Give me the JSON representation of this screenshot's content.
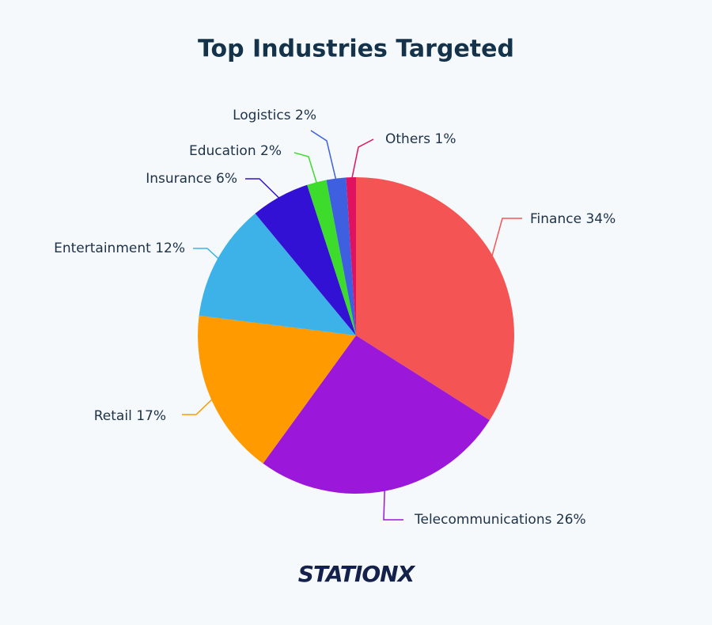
{
  "chart_data": {
    "type": "pie",
    "title": "Top Industries Targeted",
    "categories": [
      "Finance",
      "Telecommunications",
      "Retail",
      "Entertainment",
      "Insurance",
      "Education",
      "Logistics",
      "Others"
    ],
    "values": [
      34,
      26,
      17,
      12,
      6,
      2,
      2,
      1
    ],
    "value_labels": [
      "34%",
      "26%",
      "17%",
      "12%",
      "6%",
      "2%",
      "2%",
      "1%"
    ],
    "colors": [
      "#f45454",
      "#9b17d9",
      "#ff9a00",
      "#3db2e8",
      "#3210d4",
      "#3ddc2c",
      "#3d5fe0",
      "#e0115e"
    ]
  },
  "logo": "STATIONX"
}
